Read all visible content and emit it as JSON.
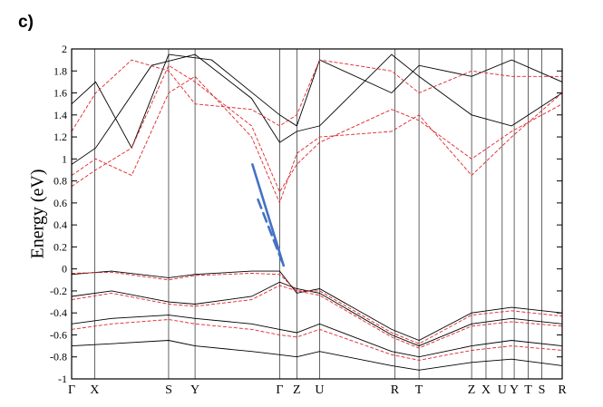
{
  "panel_label": "c)",
  "chart_data": {
    "type": "line",
    "title": "",
    "xlabel": "",
    "ylabel": "Energy (eV)",
    "ylim": [
      -1,
      2
    ],
    "y_ticks": [
      "2",
      "1.8",
      "1.6",
      "1.4",
      "1.2",
      "1",
      "0.8",
      "0.6",
      "0.4",
      "0.2",
      "0",
      "-0.2",
      "-0.4",
      "-0.6",
      "-0.8",
      "-1"
    ],
    "y_tick_values": [
      2,
      1.8,
      1.6,
      1.4,
      1.2,
      1,
      0.8,
      0.6,
      0.4,
      0.2,
      0,
      -0.2,
      -0.4,
      -0.6,
      -0.8,
      -1
    ],
    "k_path_labels": [
      "Γ",
      "X",
      "S",
      "Y",
      "Γ",
      "Z",
      "U",
      "R",
      "T",
      "Z",
      "X",
      "U",
      "Y",
      "T",
      "S",
      "R"
    ],
    "k_path_positions": [
      0,
      0.0575,
      0.2425,
      0.3085,
      0.52,
      0.563,
      0.62,
      0.808,
      0.8685,
      1.0,
      1.036,
      1.0765,
      1.1065,
      1.1415,
      1.1755,
      1.2265
    ],
    "series": [
      {
        "style": "solid",
        "color": "#000000",
        "bands": [
          {
            "x": [
              0,
              0.1,
              0.2425,
              0.3085,
              0.45,
              0.52,
              0.563,
              0.62,
              0.8,
              0.8685,
              1.0,
              1.1,
              1.2265
            ],
            "y": [
              -0.05,
              -0.02,
              -0.08,
              -0.05,
              -0.02,
              -0.02,
              -0.22,
              -0.18,
              -0.55,
              -0.65,
              -0.4,
              -0.35,
              -0.4
            ]
          },
          {
            "x": [
              0,
              0.1,
              0.2425,
              0.3085,
              0.45,
              0.52,
              0.563,
              0.62,
              0.8,
              0.8685,
              1.0,
              1.1,
              1.2265
            ],
            "y": [
              -0.25,
              -0.2,
              -0.3,
              -0.32,
              -0.25,
              -0.12,
              -0.18,
              -0.22,
              -0.6,
              -0.7,
              -0.5,
              -0.45,
              -0.5
            ]
          },
          {
            "x": [
              0,
              0.1,
              0.2425,
              0.3085,
              0.45,
              0.52,
              0.563,
              0.62,
              0.8,
              0.8685,
              1.0,
              1.1,
              1.2265
            ],
            "y": [
              -0.5,
              -0.45,
              -0.42,
              -0.45,
              -0.5,
              -0.55,
              -0.58,
              -0.5,
              -0.75,
              -0.8,
              -0.7,
              -0.65,
              -0.7
            ]
          },
          {
            "x": [
              0,
              0.1,
              0.2425,
              0.3085,
              0.45,
              0.52,
              0.563,
              0.62,
              0.8,
              0.8685,
              1.0,
              1.1,
              1.2265
            ],
            "y": [
              -0.7,
              -0.68,
              -0.65,
              -0.7,
              -0.75,
              -0.78,
              -0.8,
              -0.75,
              -0.88,
              -0.92,
              -0.85,
              -0.82,
              -0.88
            ]
          },
          {
            "x": [
              0,
              0.06,
              0.2,
              0.3085,
              0.45,
              0.52,
              0.563,
              0.62,
              0.8,
              0.8685,
              1.0,
              1.1,
              1.2265
            ],
            "y": [
              0.95,
              1.1,
              1.85,
              1.95,
              1.55,
              1.15,
              1.25,
              1.3,
              1.95,
              1.75,
              1.4,
              1.3,
              1.6
            ]
          },
          {
            "x": [
              0,
              0.06,
              0.15,
              0.2425,
              0.35,
              0.52,
              0.563,
              0.62,
              0.8,
              0.8685,
              1.0,
              1.1,
              1.2265
            ],
            "y": [
              1.5,
              1.7,
              1.1,
              1.95,
              1.9,
              1.4,
              1.3,
              1.9,
              1.6,
              1.85,
              1.75,
              1.9,
              1.7
            ]
          }
        ]
      },
      {
        "style": "dashed",
        "color": "#e0262a",
        "bands": [
          {
            "x": [
              0,
              0.1,
              0.2425,
              0.3085,
              0.45,
              0.52,
              0.563,
              0.62,
              0.8,
              0.8685,
              1.0,
              1.1,
              1.2265
            ],
            "y": [
              -0.04,
              -0.03,
              -0.1,
              -0.06,
              -0.04,
              -0.05,
              -0.2,
              -0.2,
              -0.58,
              -0.68,
              -0.42,
              -0.38,
              -0.43
            ]
          },
          {
            "x": [
              0,
              0.1,
              0.2425,
              0.3085,
              0.45,
              0.52,
              0.563,
              0.62,
              0.8,
              0.8685,
              1.0,
              1.1,
              1.2265
            ],
            "y": [
              -0.28,
              -0.22,
              -0.32,
              -0.34,
              -0.28,
              -0.15,
              -0.2,
              -0.24,
              -0.62,
              -0.72,
              -0.52,
              -0.48,
              -0.52
            ]
          },
          {
            "x": [
              0,
              0.1,
              0.2425,
              0.3085,
              0.45,
              0.52,
              0.563,
              0.62,
              0.8,
              0.8685,
              1.0,
              1.1,
              1.2265
            ],
            "y": [
              -0.55,
              -0.5,
              -0.46,
              -0.5,
              -0.55,
              -0.6,
              -0.62,
              -0.55,
              -0.78,
              -0.83,
              -0.74,
              -0.7,
              -0.74
            ]
          },
          {
            "x": [
              0,
              0.06,
              0.15,
              0.2425,
              0.3085,
              0.45,
              0.52,
              0.563,
              0.62,
              0.8,
              0.8685,
              1.0,
              1.1,
              1.2265
            ],
            "y": [
              0.75,
              0.9,
              1.1,
              1.85,
              1.7,
              1.3,
              0.7,
              0.95,
              1.15,
              1.45,
              1.35,
              1.0,
              1.25,
              1.5
            ]
          },
          {
            "x": [
              0,
              0.06,
              0.15,
              0.2425,
              0.3085,
              0.45,
              0.52,
              0.563,
              0.62,
              0.8,
              0.8685,
              1.0,
              1.1,
              1.2265
            ],
            "y": [
              0.85,
              1.0,
              0.85,
              1.6,
              1.75,
              1.2,
              0.6,
              1.05,
              1.2,
              1.25,
              1.4,
              0.85,
              1.2,
              1.6
            ]
          },
          {
            "x": [
              0,
              0.06,
              0.15,
              0.2425,
              0.3085,
              0.45,
              0.52,
              0.563,
              0.62,
              0.8,
              0.8685,
              1.0,
              1.1,
              1.2265
            ],
            "y": [
              1.25,
              1.6,
              1.9,
              1.8,
              1.5,
              1.45,
              1.3,
              1.4,
              1.9,
              1.8,
              1.6,
              1.8,
              1.75,
              1.75
            ]
          }
        ]
      }
    ],
    "annotations": [
      {
        "style": "solid",
        "color": "#4472c4",
        "x": [
          0.452,
          0.53
        ],
        "y": [
          0.95,
          0.03
        ]
      },
      {
        "style": "dashed",
        "color": "#4472c4",
        "x": [
          0.466,
          0.53
        ],
        "y": [
          0.63,
          0.03
        ]
      }
    ]
  }
}
